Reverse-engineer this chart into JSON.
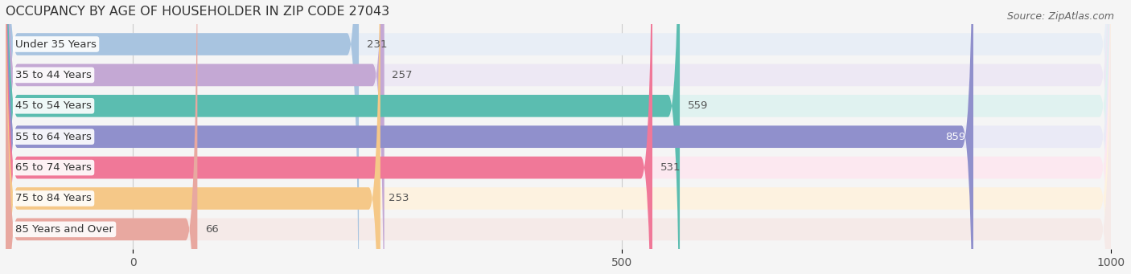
{
  "title": "OCCUPANCY BY AGE OF HOUSEHOLDER IN ZIP CODE 27043",
  "source": "Source: ZipAtlas.com",
  "categories": [
    "Under 35 Years",
    "35 to 44 Years",
    "45 to 54 Years",
    "55 to 64 Years",
    "65 to 74 Years",
    "75 to 84 Years",
    "85 Years and Over"
  ],
  "values": [
    231,
    257,
    559,
    859,
    531,
    253,
    66
  ],
  "bar_colors": [
    "#a8c4e0",
    "#c4a8d4",
    "#5bbdb0",
    "#9090cc",
    "#f07898",
    "#f5c888",
    "#e8a8a0"
  ],
  "bar_bg_colors": [
    "#e8eef6",
    "#ede8f4",
    "#e0f2f0",
    "#eaeaf6",
    "#fce8f0",
    "#fdf2e0",
    "#f5eae8"
  ],
  "xmin": -130,
  "xmax": 1000,
  "xticks": [
    0,
    500,
    1000
  ],
  "title_fontsize": 11.5,
  "source_fontsize": 9,
  "value_label_inside_color": "#ffffff",
  "value_label_outside_color": "#555555",
  "background_color": "#f5f5f5",
  "bar_height": 0.72,
  "bar_gap": 0.28,
  "label_fontsize": 9.5,
  "value_fontsize": 9.5,
  "tick_fontsize": 10
}
